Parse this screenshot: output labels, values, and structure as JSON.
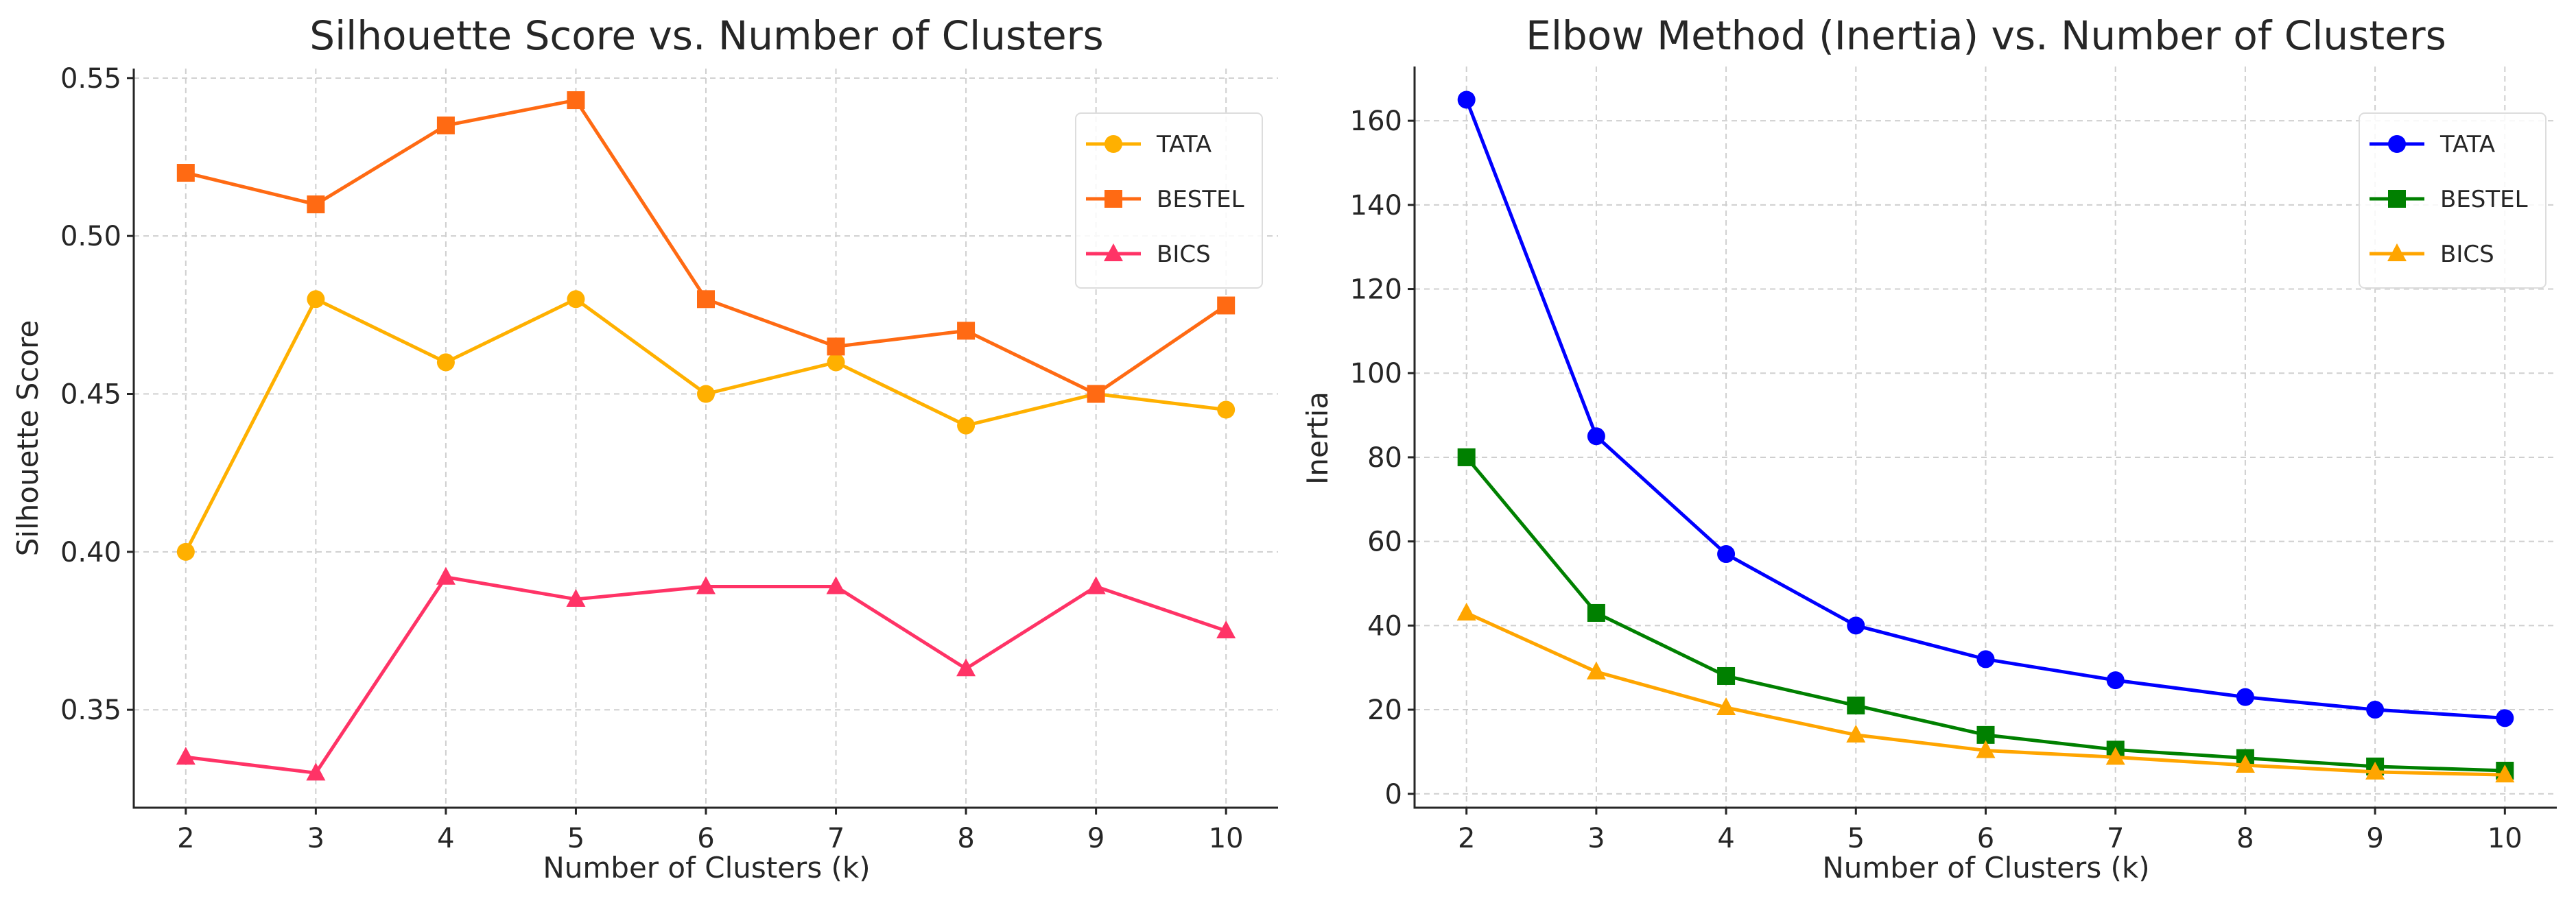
{
  "chart_data": [
    {
      "type": "line",
      "title": "Silhouette Score vs. Number of Clusters",
      "xlabel": "Number of Clusters (k)",
      "ylabel": "Silhouette Score",
      "x": [
        2,
        3,
        4,
        5,
        6,
        7,
        8,
        9,
        10
      ],
      "xticks": [
        "2",
        "3",
        "4",
        "5",
        "6",
        "7",
        "8",
        "9",
        "10"
      ],
      "yticks": [
        0.35,
        0.4,
        0.45,
        0.5,
        0.55
      ],
      "ytick_labels": [
        "0.35",
        "0.40",
        "0.45",
        "0.50",
        "0.55"
      ],
      "xlim": [
        1.6,
        10.4
      ],
      "ylim": [
        0.319,
        0.553
      ],
      "grid": true,
      "legend_position": "top-right",
      "series": [
        {
          "name": "TATA",
          "color": "#FFB000",
          "marker": "circle",
          "values": [
            0.4,
            0.48,
            0.46,
            0.48,
            0.45,
            0.46,
            0.44,
            0.45,
            0.445
          ]
        },
        {
          "name": "BESTEL",
          "color": "#FF6A13",
          "marker": "square",
          "values": [
            0.52,
            0.51,
            0.535,
            0.543,
            0.48,
            0.465,
            0.47,
            0.45,
            0.478
          ]
        },
        {
          "name": "BICS",
          "color": "#FF3366",
          "marker": "triangle",
          "values": [
            0.335,
            0.33,
            0.392,
            0.385,
            0.389,
            0.389,
            0.363,
            0.389,
            0.375
          ]
        }
      ]
    },
    {
      "type": "line",
      "title": "Elbow Method (Inertia) vs. Number of Clusters",
      "xlabel": "Number of Clusters (k)",
      "ylabel": "Inertia",
      "x": [
        2,
        3,
        4,
        5,
        6,
        7,
        8,
        9,
        10
      ],
      "xticks": [
        "2",
        "3",
        "4",
        "5",
        "6",
        "7",
        "8",
        "9",
        "10"
      ],
      "yticks": [
        0,
        20,
        40,
        60,
        80,
        100,
        120,
        140,
        160
      ],
      "ytick_labels": [
        "0",
        "20",
        "40",
        "60",
        "80",
        "100",
        "120",
        "140",
        "160"
      ],
      "xlim": [
        1.6,
        10.4
      ],
      "ylim": [
        -3.3,
        172.9
      ],
      "grid": true,
      "legend_position": "top-right",
      "series": [
        {
          "name": "TATA",
          "color": "#0000FF",
          "marker": "circle",
          "values": [
            165,
            85,
            57,
            40,
            32,
            27,
            23,
            20,
            18
          ]
        },
        {
          "name": "BESTEL",
          "color": "#008000",
          "marker": "square",
          "values": [
            80,
            43,
            28,
            21,
            14,
            10.5,
            8.5,
            6.5,
            5.5
          ]
        },
        {
          "name": "BICS",
          "color": "#FFA500",
          "marker": "triangle",
          "values": [
            43,
            29,
            20.5,
            14,
            10.3,
            8.7,
            6.8,
            5.2,
            4.5
          ]
        }
      ]
    }
  ]
}
